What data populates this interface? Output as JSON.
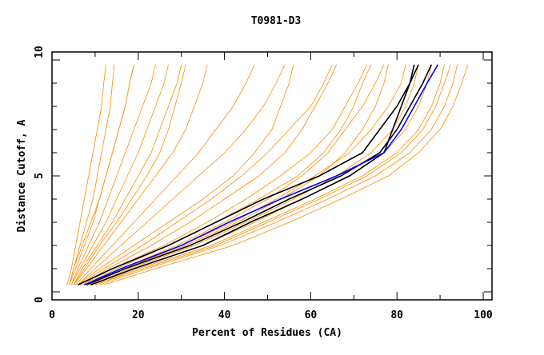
{
  "chart_data": {
    "type": "line",
    "title": "T0981-D3",
    "xlabel": "Percent of Residues (CA)",
    "ylabel": "Distance Cutoff, A",
    "xlim": [
      0,
      102
    ],
    "ylim": [
      0,
      10
    ],
    "xticks": [
      "0",
      "20",
      "40",
      "60",
      "80",
      "100"
    ],
    "yticks": [
      "0",
      "5",
      "10"
    ],
    "grid": false,
    "y_levels": [
      0.3,
      1,
      2,
      3,
      4,
      5,
      6,
      7,
      8,
      9,
      9.8
    ],
    "colors": {
      "other": "#ff8c00",
      "highlight": "#000000",
      "best": "#0000ff"
    },
    "series": [
      {
        "name": "o1",
        "group": "other",
        "x": [
          3.5,
          4.5,
          5.5,
          6.5,
          7.5,
          8.5,
          9.5,
          10.5,
          11.5,
          12,
          12.5
        ]
      },
      {
        "name": "o2",
        "group": "other",
        "x": [
          4,
          5,
          6.5,
          8,
          9.5,
          10.5,
          11.5,
          12.5,
          13.5,
          14,
          14.5
        ]
      },
      {
        "name": "o3",
        "group": "other",
        "x": [
          4,
          5.5,
          7.5,
          9.5,
          11,
          12.5,
          14,
          15.5,
          17,
          18,
          19
        ]
      },
      {
        "name": "o4",
        "group": "other",
        "x": [
          4.5,
          6,
          8.5,
          11,
          13,
          15,
          17,
          19,
          21,
          23,
          24
        ]
      },
      {
        "name": "o5",
        "group": "other",
        "x": [
          4.5,
          6.5,
          9.5,
          12.5,
          15,
          17.5,
          20,
          22,
          24,
          26,
          27
        ]
      },
      {
        "name": "o6",
        "group": "other",
        "x": [
          5,
          7,
          10.5,
          14,
          17,
          20,
          23,
          25,
          27,
          29,
          30
        ]
      },
      {
        "name": "o7",
        "group": "other",
        "x": [
          5,
          8,
          12,
          16,
          20,
          24,
          28,
          31,
          33,
          35,
          36
        ]
      },
      {
        "name": "o8",
        "group": "other",
        "x": [
          5.5,
          9,
          14,
          19,
          24,
          29,
          34,
          38,
          42,
          45,
          47
        ]
      },
      {
        "name": "o9",
        "group": "other",
        "x": [
          6,
          10,
          16,
          22,
          28,
          34,
          40,
          45,
          49,
          52,
          54
        ]
      },
      {
        "name": "o10",
        "group": "other",
        "x": [
          6,
          11,
          19,
          27,
          35,
          42,
          47,
          51,
          53,
          55,
          56
        ]
      },
      {
        "name": "o11",
        "group": "other",
        "x": [
          7,
          13,
          23,
          32,
          40,
          48,
          54,
          58,
          61,
          64,
          66
        ]
      },
      {
        "name": "o12",
        "group": "other",
        "x": [
          7,
          14,
          26,
          36,
          45,
          53,
          60,
          65,
          68,
          71,
          73
        ]
      },
      {
        "name": "o13",
        "group": "other",
        "x": [
          8,
          16,
          29,
          40,
          50,
          58,
          64,
          68,
          72,
          75,
          77
        ]
      },
      {
        "name": "o14",
        "group": "other",
        "x": [
          8,
          17,
          31,
          43,
          53,
          62,
          68,
          72,
          75,
          77,
          78
        ]
      },
      {
        "name": "o15",
        "group": "other",
        "x": [
          9,
          18,
          33,
          45,
          56,
          66,
          74,
          79,
          82,
          84,
          85
        ]
      },
      {
        "name": "o16",
        "group": "other",
        "x": [
          9,
          19,
          35,
          47,
          58,
          69,
          77,
          82,
          85,
          87,
          88
        ]
      },
      {
        "name": "o17",
        "group": "other",
        "x": [
          10,
          20,
          37,
          49,
          61,
          72,
          80,
          85,
          88,
          90,
          91
        ]
      },
      {
        "name": "o18",
        "group": "other",
        "x": [
          11,
          22,
          39,
          52,
          64,
          75,
          83,
          88,
          91,
          93,
          94
        ]
      },
      {
        "name": "o19",
        "group": "other",
        "x": [
          12,
          24,
          42,
          55,
          67,
          78,
          85,
          90,
          93,
          95,
          96.5
        ]
      },
      {
        "name": "o20",
        "group": "other",
        "x": [
          6.5,
          12,
          21,
          29,
          37,
          44,
          50,
          55,
          60,
          63,
          65
        ]
      },
      {
        "name": "o21",
        "group": "other",
        "x": [
          7.5,
          15,
          27,
          38,
          48,
          57,
          63,
          67,
          70,
          72,
          74
        ]
      },
      {
        "name": "o22",
        "group": "other",
        "x": [
          8.5,
          17,
          30,
          42,
          52,
          61,
          69,
          74,
          78,
          81,
          82
        ]
      },
      {
        "name": "o23",
        "group": "other",
        "x": [
          10,
          21,
          38,
          50,
          62,
          73,
          81,
          86,
          89,
          91,
          92.5
        ]
      },
      {
        "name": "o24",
        "group": "other",
        "x": [
          5,
          7.5,
          11,
          15,
          18.5,
          22,
          25,
          27,
          28.5,
          30,
          31
        ]
      },
      {
        "name": "o25",
        "group": "other",
        "x": [
          4,
          5,
          7,
          9,
          11,
          12.5,
          14,
          15.5,
          17,
          18,
          19
        ]
      },
      {
        "name": "h1",
        "group": "highlight",
        "x": [
          6,
          14,
          27,
          38,
          49,
          62,
          72,
          76,
          80,
          83,
          85
        ]
      },
      {
        "name": "h2",
        "group": "highlight",
        "x": [
          9,
          19,
          35,
          46,
          58,
          69,
          77,
          79,
          81,
          83,
          84
        ]
      },
      {
        "name": "h3",
        "group": "highlight",
        "x": [
          8,
          17,
          32,
          44,
          55,
          67,
          76,
          80,
          83,
          86,
          88
        ]
      },
      {
        "name": "best",
        "group": "best",
        "x": [
          7.5,
          16,
          30,
          41,
          53,
          66,
          77,
          81,
          84,
          87,
          89.5
        ]
      }
    ]
  }
}
